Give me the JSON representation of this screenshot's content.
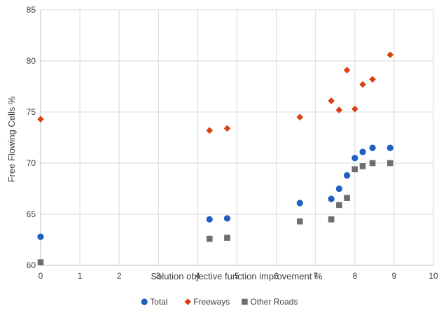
{
  "chart_data": {
    "type": "scatter",
    "title": "",
    "xlabel": "Solution objective function improvement %",
    "ylabel": "Free Flowing Cells %",
    "xlim": [
      0,
      10
    ],
    "ylim": [
      60,
      85
    ],
    "x_ticks": [
      "0",
      "1",
      "2",
      "3",
      "4",
      "5",
      "6",
      "7",
      "8",
      "9",
      "10"
    ],
    "y_ticks": [
      "60",
      "65",
      "70",
      "75",
      "80",
      "85"
    ],
    "grid": true,
    "legend_position": "bottom",
    "series": [
      {
        "name": "Total",
        "marker": "circle",
        "color": "#1F5FBF",
        "points": [
          [
            0,
            62.8
          ],
          [
            4.3,
            64.5
          ],
          [
            4.75,
            64.6
          ],
          [
            6.6,
            66.1
          ],
          [
            7.4,
            66.5
          ],
          [
            7.6,
            67.5
          ],
          [
            7.8,
            68.8
          ],
          [
            8.0,
            70.5
          ],
          [
            8.2,
            71.1
          ],
          [
            8.45,
            71.5
          ],
          [
            8.9,
            71.5
          ]
        ]
      },
      {
        "name": "Freeways",
        "marker": "diamond",
        "color": "#D9410E",
        "points": [
          [
            0,
            74.3
          ],
          [
            4.3,
            73.2
          ],
          [
            4.75,
            73.4
          ],
          [
            6.6,
            74.5
          ],
          [
            7.4,
            76.1
          ],
          [
            7.6,
            75.2
          ],
          [
            7.8,
            79.1
          ],
          [
            8.0,
            75.3
          ],
          [
            8.2,
            77.7
          ],
          [
            8.45,
            78.2
          ],
          [
            8.9,
            80.6
          ]
        ]
      },
      {
        "name": "Other Roads",
        "marker": "square",
        "color": "#6E6E6E",
        "points": [
          [
            0,
            60.3
          ],
          [
            4.3,
            62.6
          ],
          [
            4.75,
            62.7
          ],
          [
            6.6,
            64.3
          ],
          [
            7.4,
            64.5
          ],
          [
            7.6,
            65.9
          ],
          [
            7.8,
            66.6
          ],
          [
            8.0,
            69.4
          ],
          [
            8.2,
            69.7
          ],
          [
            8.45,
            70.0
          ],
          [
            8.9,
            70.0
          ]
        ]
      }
    ]
  }
}
